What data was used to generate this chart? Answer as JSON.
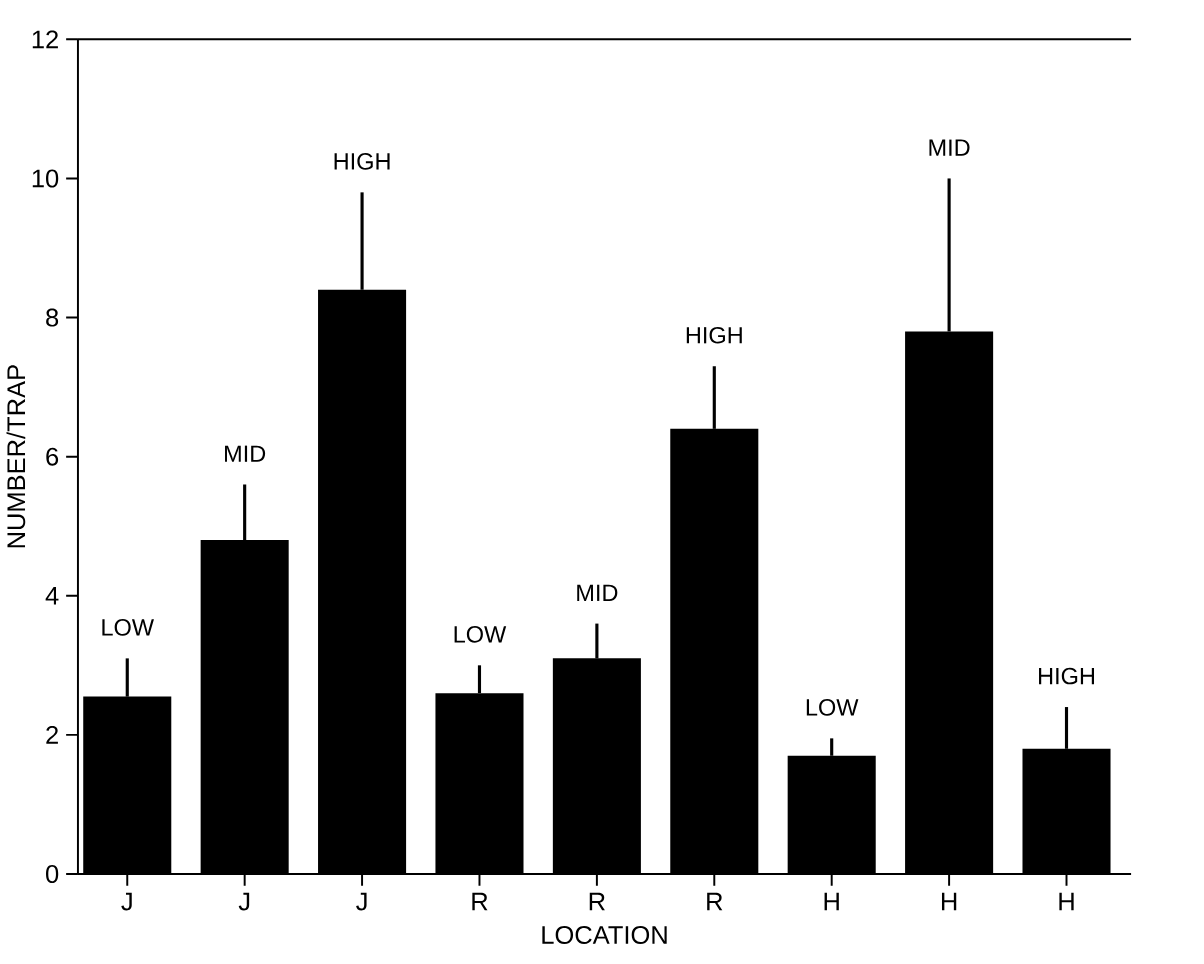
{
  "chart_data": {
    "type": "bar",
    "xlabel": "LOCATION",
    "ylabel": "NUMBER/TRAP",
    "categories": [
      "J",
      "J",
      "J",
      "R",
      "R",
      "R",
      "H",
      "H",
      "H"
    ],
    "values": [
      2.55,
      4.8,
      8.4,
      2.6,
      3.1,
      6.4,
      1.7,
      7.8,
      1.8
    ],
    "errors": [
      [
        2.55,
        3.1
      ],
      [
        4.8,
        5.6
      ],
      [
        8.4,
        9.8
      ],
      [
        2.6,
        3.0
      ],
      [
        3.1,
        3.6
      ],
      [
        6.4,
        7.3
      ],
      [
        1.7,
        1.95
      ],
      [
        7.8,
        10.0
      ],
      [
        1.8,
        2.4
      ]
    ],
    "color": "#000000",
    "ylim": [
      0,
      12
    ],
    "yticks": [
      0,
      2,
      4,
      6,
      8,
      10,
      12
    ],
    "grid": false,
    "annotations": [
      "LOW",
      "MID",
      "HIGH",
      "LOW",
      "MID",
      "HIGH",
      "LOW",
      "MID",
      "HIGH"
    ]
  }
}
